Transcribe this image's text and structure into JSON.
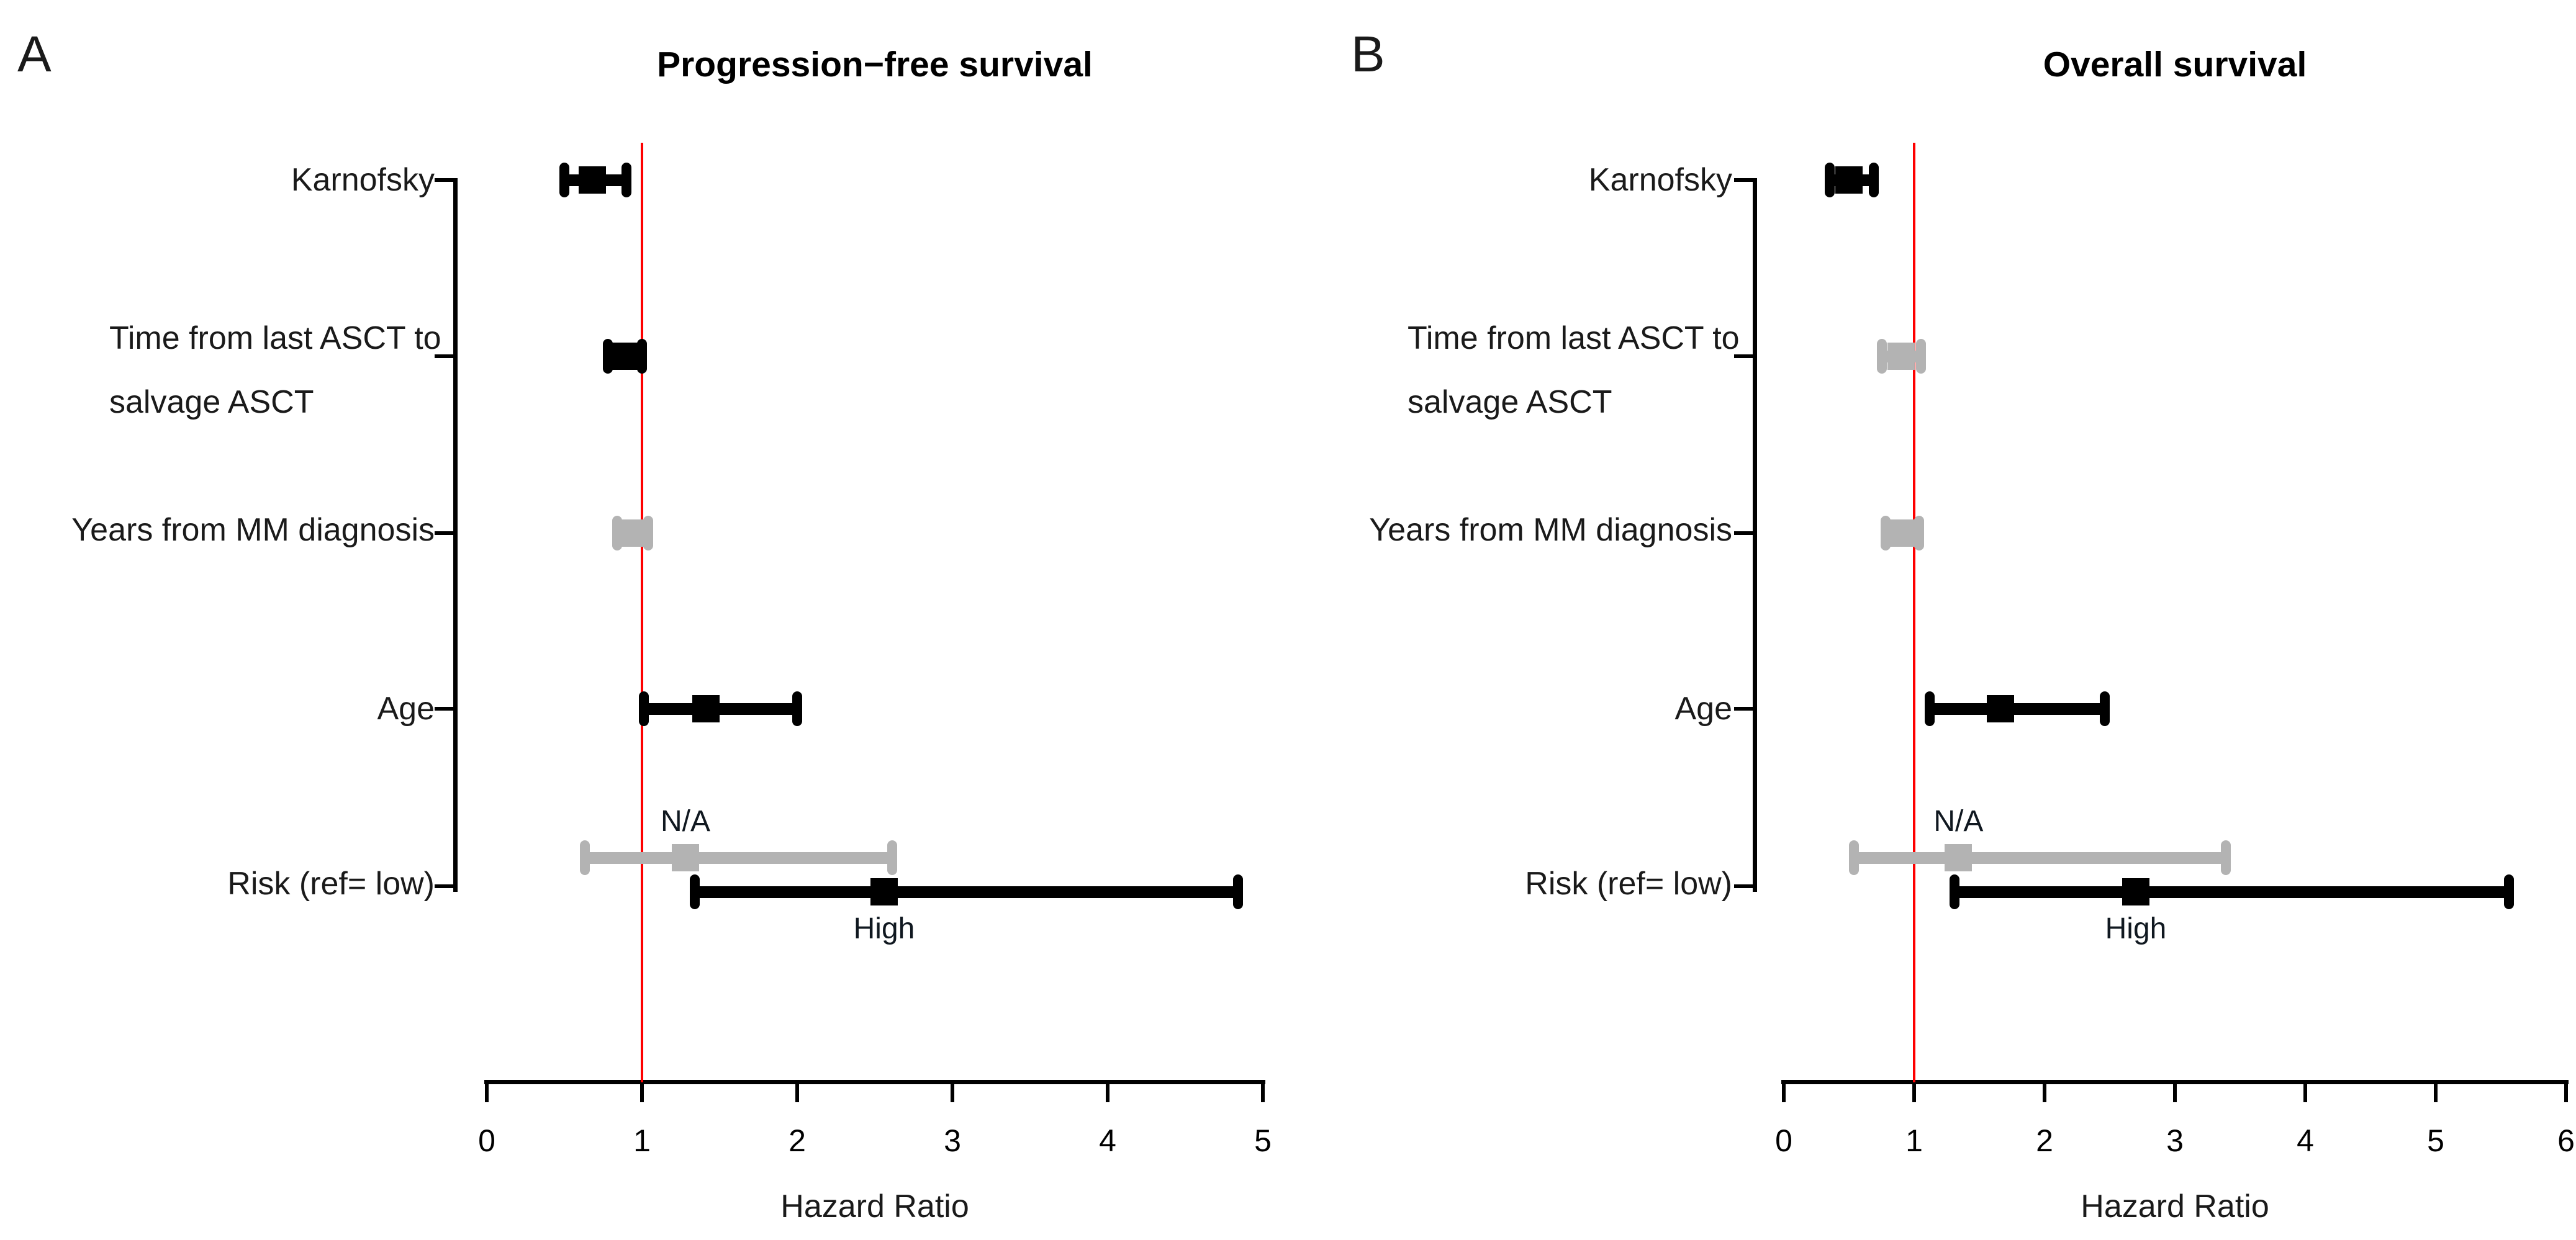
{
  "figure_title": "Forest plots of hazard ratios",
  "colors": {
    "black_series": "#000000",
    "gray_series": "#b3b3b3",
    "reference_line": "#fe0000",
    "axis": "#000000",
    "text": "#1a1a1a"
  },
  "chart_data": [
    {
      "type": "scatter",
      "panel_label": "A",
      "title": "Progression−free survival",
      "xlabel": "Hazard Ratio",
      "xlim": [
        0,
        5
      ],
      "x_ticks": [
        0,
        1,
        2,
        3,
        4,
        5
      ],
      "refline_x": 1,
      "grid": false,
      "legend": "none",
      "row_labels": [
        [
          "Karnofsky"
        ],
        [
          "Time from last ASCT to",
          "salvage ASCT"
        ],
        [
          "Years from MM diagnosis"
        ],
        [
          "Age"
        ],
        [
          "Risk (ref= low)"
        ]
      ],
      "series": [
        {
          "row": 0,
          "category": "Karnofsky",
          "hr": 0.68,
          "ci_low": 0.5,
          "ci_high": 0.9,
          "color": "black"
        },
        {
          "row": 1,
          "category": "Time from last ASCT to salvage ASCT",
          "hr": 0.89,
          "ci_low": 0.78,
          "ci_high": 1.0,
          "color": "black"
        },
        {
          "row": 2,
          "category": "Years from MM diagnosis",
          "hr": 0.94,
          "ci_low": 0.84,
          "ci_high": 1.04,
          "color": "gray"
        },
        {
          "row": 3,
          "category": "Age",
          "hr": 1.41,
          "ci_low": 1.01,
          "ci_high": 2.0,
          "color": "black"
        },
        {
          "row": 4,
          "category": "Risk (ref= low)",
          "annotation": "N/A",
          "annotation_side": "above",
          "hr": 1.28,
          "ci_low": 0.63,
          "ci_high": 2.61,
          "color": "gray"
        },
        {
          "row": 4,
          "category": "Risk (ref= low)",
          "annotation": "High",
          "annotation_side": "below",
          "hr": 2.56,
          "ci_low": 1.34,
          "ci_high": 4.84,
          "color": "black"
        }
      ]
    },
    {
      "type": "scatter",
      "panel_label": "B",
      "title": "Overall survival",
      "xlabel": "Hazard Ratio",
      "xlim": [
        0,
        6
      ],
      "x_ticks": [
        0,
        1,
        2,
        3,
        4,
        5,
        6
      ],
      "refline_x": 1,
      "grid": false,
      "legend": "none",
      "row_labels": [
        [
          "Karnofsky"
        ],
        [
          "Time from last ASCT to",
          "salvage ASCT"
        ],
        [
          "Years from MM diagnosis"
        ],
        [
          "Age"
        ],
        [
          "Risk (ref= low)"
        ]
      ],
      "series": [
        {
          "row": 0,
          "category": "Karnofsky",
          "hr": 0.5,
          "ci_low": 0.35,
          "ci_high": 0.69,
          "color": "black"
        },
        {
          "row": 1,
          "category": "Time from last ASCT to salvage ASCT",
          "hr": 0.9,
          "ci_low": 0.75,
          "ci_high": 1.05,
          "color": "gray"
        },
        {
          "row": 2,
          "category": "Years from MM diagnosis",
          "hr": 0.91,
          "ci_low": 0.78,
          "ci_high": 1.04,
          "color": "gray"
        },
        {
          "row": 3,
          "category": "Age",
          "hr": 1.66,
          "ci_low": 1.12,
          "ci_high": 2.46,
          "color": "black"
        },
        {
          "row": 4,
          "category": "Risk (ref= low)",
          "annotation": "N/A",
          "annotation_side": "above",
          "hr": 1.34,
          "ci_low": 0.54,
          "ci_high": 3.39,
          "color": "gray"
        },
        {
          "row": 4,
          "category": "Risk (ref= low)",
          "annotation": "High",
          "annotation_side": "below",
          "hr": 2.7,
          "ci_low": 1.31,
          "ci_high": 5.56,
          "color": "black"
        }
      ]
    }
  ]
}
